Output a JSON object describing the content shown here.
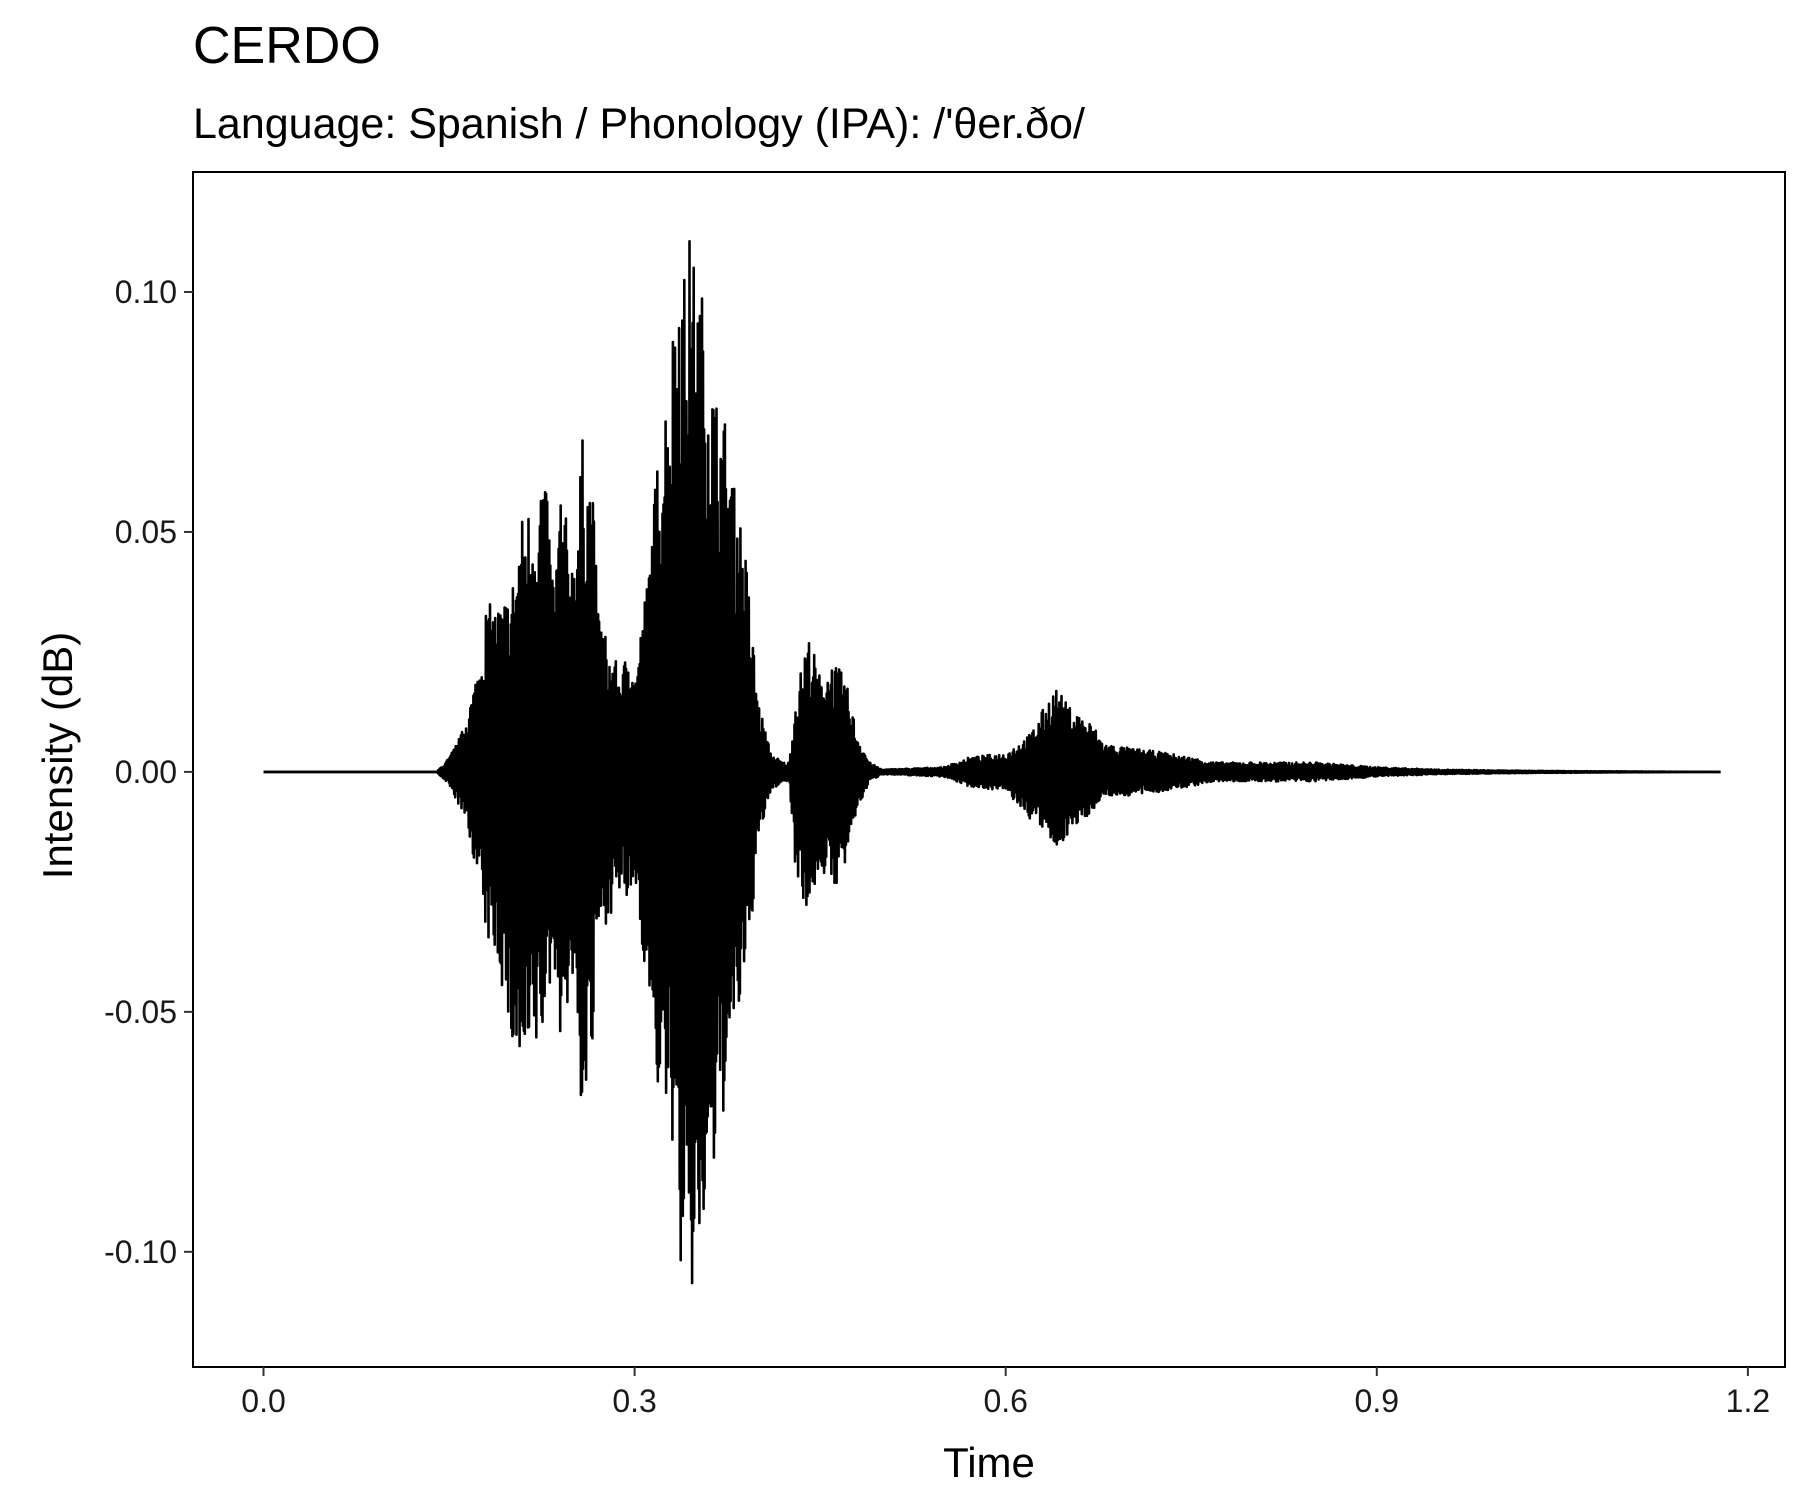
{
  "chart_data": {
    "type": "line",
    "title": "CERDO",
    "subtitle": "Language: Spanish / Phonology (IPA): /'θer.ðo/",
    "xlabel": "Time",
    "ylabel": "Intensity (dB)",
    "xlim": [
      -0.057,
      1.23
    ],
    "ylim": [
      -0.124,
      0.125
    ],
    "x_ticks": [
      0.0,
      0.3,
      0.6,
      0.9,
      1.2
    ],
    "x_tick_labels": [
      "0.0",
      "0.3",
      "0.6",
      "0.9",
      "1.2"
    ],
    "y_ticks": [
      0.1,
      0.05,
      0.0,
      -0.05,
      -0.1
    ],
    "y_tick_labels": [
      "0.10",
      "0.05",
      "0.00",
      "-0.05",
      "-0.10"
    ],
    "grid": false,
    "series": [
      {
        "color": "#000000",
        "x_start": 0.0,
        "x_end": 1.178,
        "envelope": {
          "t": [
            0.0,
            0.14,
            0.15,
            0.16,
            0.17,
            0.175,
            0.18,
            0.19,
            0.2,
            0.21,
            0.22,
            0.226,
            0.235,
            0.24,
            0.25,
            0.258,
            0.266,
            0.27,
            0.28,
            0.29,
            0.297,
            0.3,
            0.31,
            0.32,
            0.33,
            0.335,
            0.34,
            0.345,
            0.35,
            0.355,
            0.36,
            0.365,
            0.37,
            0.375,
            0.38,
            0.385,
            0.39,
            0.395,
            0.4,
            0.41,
            0.42,
            0.425,
            0.43,
            0.44,
            0.445,
            0.45,
            0.46,
            0.47,
            0.48,
            0.49,
            0.5,
            0.55,
            0.57,
            0.6,
            0.62,
            0.63,
            0.64,
            0.645,
            0.65,
            0.66,
            0.67,
            0.68,
            0.7,
            0.73,
            0.77,
            0.8,
            0.85,
            0.9,
            0.95,
            1.0,
            1.05,
            1.1,
            1.178
          ],
          "upper": [
            0.0,
            0.0,
            0.003,
            0.008,
            0.018,
            0.025,
            0.035,
            0.035,
            0.038,
            0.055,
            0.057,
            0.066,
            0.04,
            0.06,
            0.045,
            0.07,
            0.06,
            0.036,
            0.025,
            0.021,
            0.03,
            0.02,
            0.04,
            0.07,
            0.09,
            0.113,
            0.105,
            0.113,
            0.104,
            0.1,
            0.09,
            0.08,
            0.076,
            0.073,
            0.06,
            0.055,
            0.045,
            0.03,
            0.015,
            0.004,
            0.002,
            0.002,
            0.015,
            0.029,
            0.025,
            0.02,
            0.023,
            0.02,
            0.008,
            0.002,
            0.0005,
            0.001,
            0.003,
            0.004,
            0.008,
            0.013,
            0.018,
            0.016,
            0.014,
            0.012,
            0.01,
            0.006,
            0.005,
            0.004,
            0.002,
            0.002,
            0.002,
            0.001,
            0.0005,
            0.0003,
            0.0002,
            0.0001,
            0.0
          ],
          "lower": [
            0.0,
            0.0,
            -0.003,
            -0.008,
            -0.018,
            -0.025,
            -0.035,
            -0.04,
            -0.058,
            -0.066,
            -0.06,
            -0.055,
            -0.04,
            -0.055,
            -0.045,
            -0.074,
            -0.06,
            -0.035,
            -0.03,
            -0.025,
            -0.03,
            -0.022,
            -0.045,
            -0.07,
            -0.075,
            -0.1,
            -0.11,
            -0.113,
            -0.105,
            -0.1,
            -0.09,
            -0.085,
            -0.075,
            -0.065,
            -0.058,
            -0.05,
            -0.045,
            -0.03,
            -0.015,
            -0.004,
            -0.002,
            -0.002,
            -0.02,
            -0.03,
            -0.025,
            -0.02,
            -0.025,
            -0.02,
            -0.008,
            -0.002,
            -0.0005,
            -0.001,
            -0.003,
            -0.004,
            -0.01,
            -0.012,
            -0.017,
            -0.015,
            -0.013,
            -0.011,
            -0.008,
            -0.005,
            -0.005,
            -0.004,
            -0.002,
            -0.002,
            -0.002,
            -0.001,
            -0.0005,
            -0.0003,
            -0.0002,
            -0.0001,
            0.0
          ]
        }
      }
    ]
  }
}
